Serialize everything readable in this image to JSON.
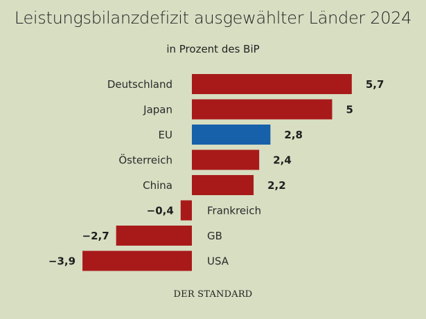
{
  "chart_data": {
    "type": "bar",
    "orientation": "horizontal",
    "title": "Leistungsbilanzdefizit ausgewählter Länder 2024",
    "subtitle": "in Prozent des BiP",
    "xlabel": "",
    "ylabel": "",
    "xlim": [
      -3.9,
      5.7
    ],
    "grid": false,
    "categories": [
      "Deutschland",
      "Japan",
      "EU",
      "Österreich",
      "China",
      "Frankreich",
      "GB",
      "USA"
    ],
    "values": [
      5.7,
      5,
      2.8,
      2.4,
      2.2,
      -0.4,
      -2.7,
      -3.9
    ],
    "value_labels": [
      "5,7",
      "5",
      "2,8",
      "2,4",
      "2,2",
      "−0,4",
      "−2,7",
      "−3,9"
    ],
    "colors": [
      "#a81a1a",
      "#a81a1a",
      "#1760aa",
      "#a81a1a",
      "#a81a1a",
      "#a81a1a",
      "#a81a1a",
      "#a81a1a"
    ],
    "source": "DER STANDARD"
  },
  "colors": {
    "background": "#d8dec2",
    "bar_default": "#a81a1a",
    "bar_highlight": "#1760aa"
  }
}
